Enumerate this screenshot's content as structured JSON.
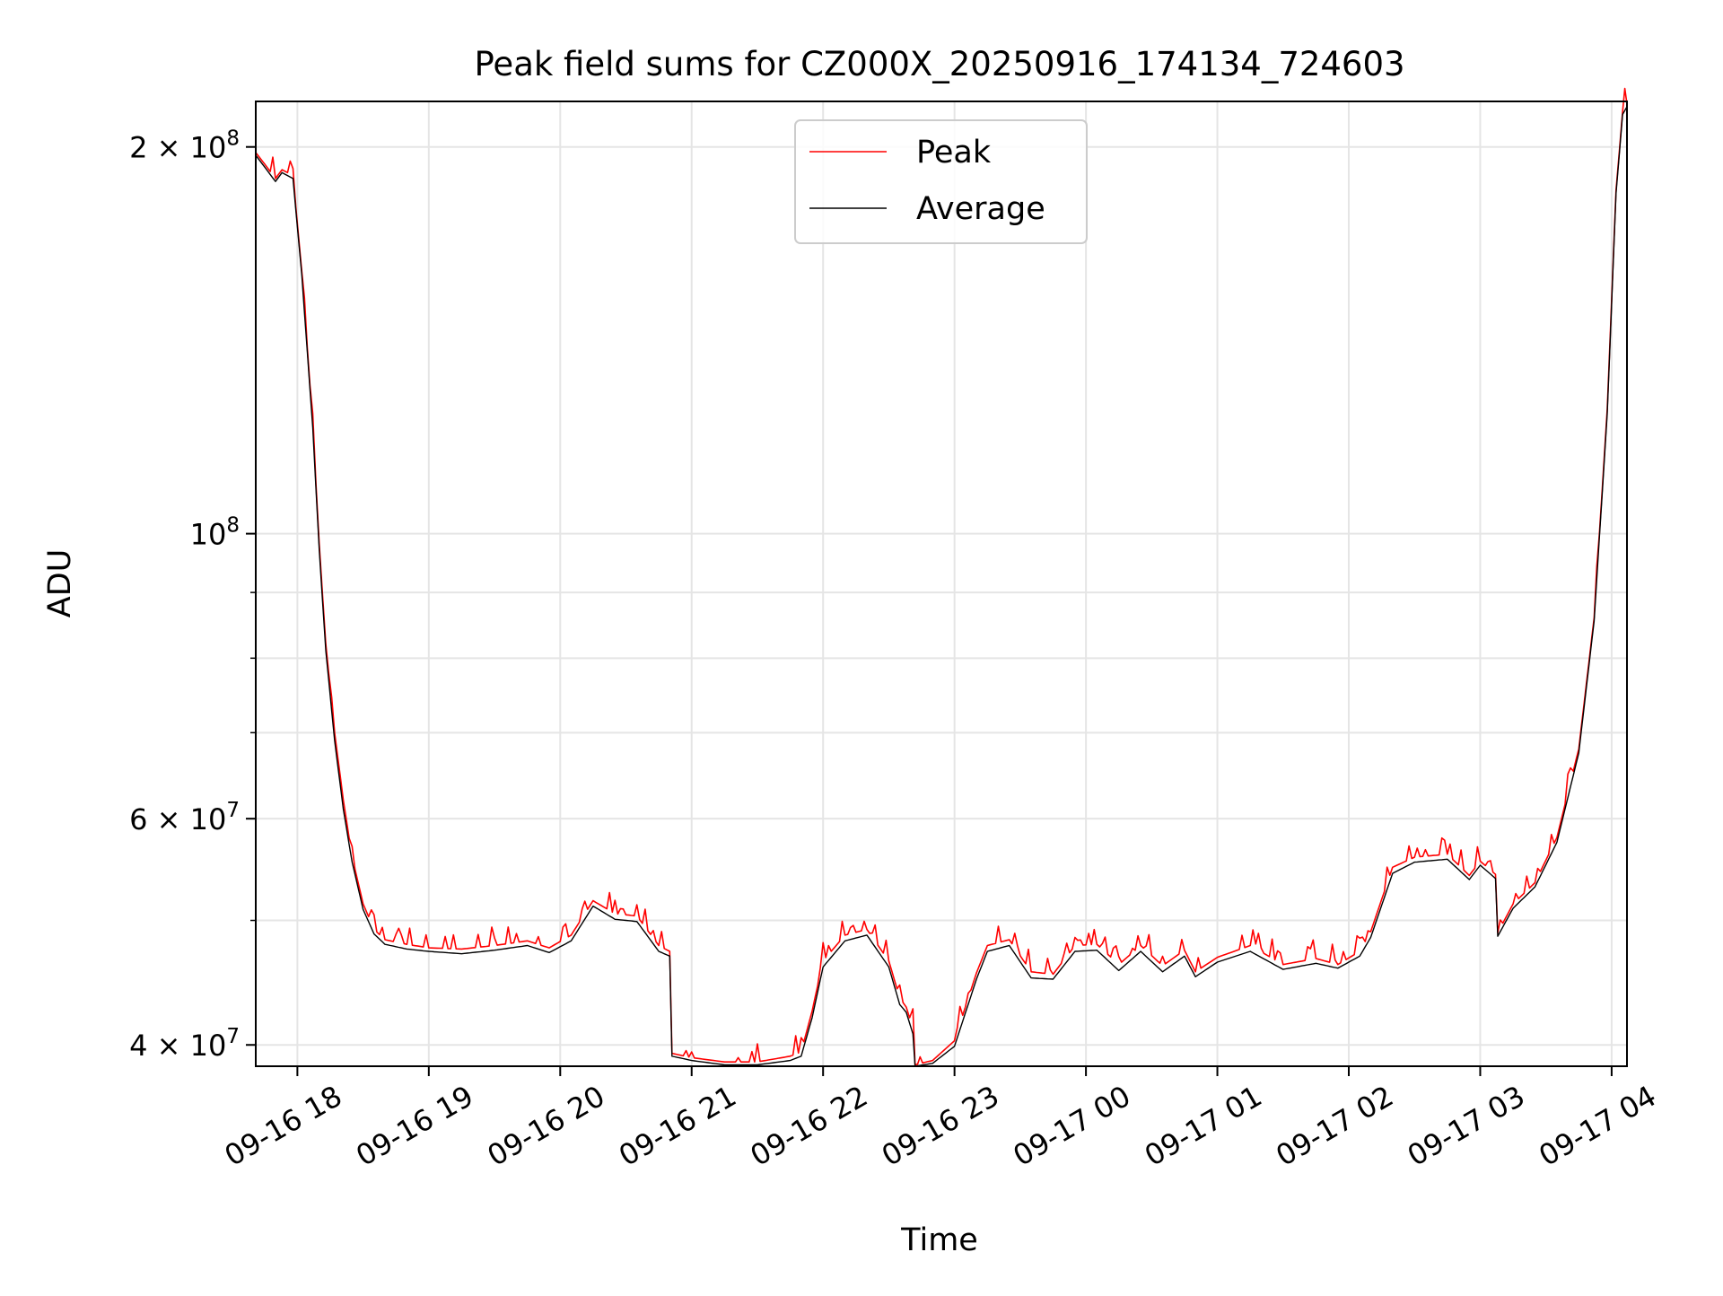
{
  "chart_data": {
    "type": "line",
    "title": "Peak field sums for CZ000X_20250916_174134_724603",
    "xlabel": "Time",
    "ylabel": "ADU",
    "yscale": "log",
    "ylim": [
      38500000,
      217000000
    ],
    "xlim": [
      "2025-09-16 17:41",
      "2025-09-17 04:07"
    ],
    "grid": true,
    "legend": "upper center",
    "x_ticks": [
      {
        "t": "2025-09-16 18:00",
        "label": "09-16 18"
      },
      {
        "t": "2025-09-16 19:00",
        "label": "09-16 19"
      },
      {
        "t": "2025-09-16 20:00",
        "label": "09-16 20"
      },
      {
        "t": "2025-09-16 21:00",
        "label": "09-16 21"
      },
      {
        "t": "2025-09-16 22:00",
        "label": "09-16 22"
      },
      {
        "t": "2025-09-16 23:00",
        "label": "09-16 23"
      },
      {
        "t": "2025-09-17 00:00",
        "label": "09-17 00"
      },
      {
        "t": "2025-09-17 01:00",
        "label": "09-17 01"
      },
      {
        "t": "2025-09-17 02:00",
        "label": "09-17 02"
      },
      {
        "t": "2025-09-17 03:00",
        "label": "09-17 03"
      },
      {
        "t": "2025-09-17 04:00",
        "label": "09-17 04"
      }
    ],
    "y_ticks": [
      {
        "v": 40000000,
        "base": "4 × 10",
        "exp": "7"
      },
      {
        "v": 60000000,
        "base": "6 × 10",
        "exp": "7"
      },
      {
        "v": 100000000,
        "base": "10",
        "exp": "8"
      },
      {
        "v": 200000000,
        "base": "2 × 10",
        "exp": "8"
      }
    ],
    "y_minor_ticks": [
      50000000,
      70000000,
      80000000,
      90000000
    ],
    "series": [
      {
        "name": "Peak",
        "color": "#ff0000",
        "noise_spikes": true,
        "x": [
          "2025-09-16 17:41",
          "2025-09-16 17:44",
          "2025-09-16 17:50",
          "2025-09-16 17:53",
          "2025-09-16 17:58",
          "2025-09-16 18:02",
          "2025-09-16 18:07",
          "2025-09-16 18:10",
          "2025-09-16 18:13",
          "2025-09-16 18:17",
          "2025-09-16 18:21",
          "2025-09-16 18:25",
          "2025-09-16 18:30",
          "2025-09-16 18:35",
          "2025-09-16 18:40",
          "2025-09-16 18:50",
          "2025-09-16 19:00",
          "2025-09-16 19:15",
          "2025-09-16 19:30",
          "2025-09-16 19:45",
          "2025-09-16 19:55",
          "2025-09-16 20:05",
          "2025-09-16 20:15",
          "2025-09-16 20:25",
          "2025-09-16 20:35",
          "2025-09-16 20:45",
          "2025-09-16 20:50",
          "2025-09-16 20:51",
          "2025-09-16 21:00",
          "2025-09-16 21:15",
          "2025-09-16 21:30",
          "2025-09-16 21:45",
          "2025-09-16 21:50",
          "2025-09-16 21:55",
          "2025-09-16 22:00",
          "2025-09-16 22:10",
          "2025-09-16 22:20",
          "2025-09-16 22:30",
          "2025-09-16 22:35",
          "2025-09-16 22:38",
          "2025-09-16 22:41",
          "2025-09-16 22:42",
          "2025-09-16 22:50",
          "2025-09-16 23:00",
          "2025-09-16 23:10",
          "2025-09-16 23:15",
          "2025-09-16 23:25",
          "2025-09-16 23:35",
          "2025-09-16 23:45",
          "2025-09-16 23:55",
          "2025-09-17 00:05",
          "2025-09-17 00:15",
          "2025-09-17 00:25",
          "2025-09-17 00:35",
          "2025-09-17 00:45",
          "2025-09-17 00:50",
          "2025-09-17 01:00",
          "2025-09-17 01:15",
          "2025-09-17 01:30",
          "2025-09-17 01:45",
          "2025-09-17 01:55",
          "2025-09-17 02:05",
          "2025-09-17 02:10",
          "2025-09-17 02:20",
          "2025-09-17 02:30",
          "2025-09-17 02:45",
          "2025-09-17 02:55",
          "2025-09-17 03:00",
          "2025-09-17 03:07",
          "2025-09-17 03:08",
          "2025-09-17 03:15",
          "2025-09-17 03:25",
          "2025-09-17 03:35",
          "2025-09-17 03:45",
          "2025-09-17 03:52",
          "2025-09-17 03:58",
          "2025-09-17 04:02",
          "2025-09-17 04:05",
          "2025-09-17 04:07"
        ],
        "y": [
          198000000,
          195000000,
          189000000,
          192000000,
          190000000,
          160000000,
          122000000,
          98000000,
          82000000,
          70000000,
          62000000,
          56000000,
          51500000,
          49200000,
          48300000,
          47900000,
          47600000,
          47500000,
          47800000,
          48200000,
          47600000,
          48700000,
          51800000,
          50600000,
          50400000,
          47800000,
          47300000,
          39400000,
          39100000,
          38800000,
          38800000,
          39200000,
          39500000,
          42500000,
          46500000,
          48700000,
          49200000,
          46500000,
          43500000,
          42800000,
          41200000,
          38600000,
          38900000,
          40300000,
          45500000,
          47800000,
          48300000,
          45600000,
          45400000,
          47800000,
          47900000,
          46200000,
          47800000,
          46100000,
          47400000,
          45600000,
          46800000,
          47800000,
          46200000,
          46700000,
          46200000,
          47300000,
          49000000,
          55000000,
          56000000,
          56300000,
          54200000,
          55600000,
          54300000,
          48900000,
          51500000,
          53500000,
          58000000,
          68000000,
          86000000,
          125000000,
          185000000,
          213000000,
          216000000
        ]
      },
      {
        "name": "Average",
        "color": "#000000",
        "noise_spikes": false,
        "x": [
          "2025-09-16 17:41",
          "2025-09-16 17:44",
          "2025-09-16 17:50",
          "2025-09-16 17:53",
          "2025-09-16 17:58",
          "2025-09-16 18:02",
          "2025-09-16 18:07",
          "2025-09-16 18:10",
          "2025-09-16 18:13",
          "2025-09-16 18:17",
          "2025-09-16 18:21",
          "2025-09-16 18:25",
          "2025-09-16 18:30",
          "2025-09-16 18:35",
          "2025-09-16 18:40",
          "2025-09-16 18:50",
          "2025-09-16 19:00",
          "2025-09-16 19:15",
          "2025-09-16 19:30",
          "2025-09-16 19:45",
          "2025-09-16 19:55",
          "2025-09-16 20:05",
          "2025-09-16 20:15",
          "2025-09-16 20:25",
          "2025-09-16 20:35",
          "2025-09-16 20:45",
          "2025-09-16 20:50",
          "2025-09-16 20:51",
          "2025-09-16 21:00",
          "2025-09-16 21:15",
          "2025-09-16 21:30",
          "2025-09-16 21:45",
          "2025-09-16 21:50",
          "2025-09-16 21:55",
          "2025-09-16 22:00",
          "2025-09-16 22:10",
          "2025-09-16 22:20",
          "2025-09-16 22:30",
          "2025-09-16 22:35",
          "2025-09-16 22:38",
          "2025-09-16 22:41",
          "2025-09-16 22:42",
          "2025-09-16 22:50",
          "2025-09-16 23:00",
          "2025-09-16 23:10",
          "2025-09-16 23:15",
          "2025-09-16 23:25",
          "2025-09-16 23:35",
          "2025-09-16 23:45",
          "2025-09-16 23:55",
          "2025-09-17 00:05",
          "2025-09-17 00:15",
          "2025-09-17 00:25",
          "2025-09-17 00:35",
          "2025-09-17 00:45",
          "2025-09-17 00:50",
          "2025-09-17 01:00",
          "2025-09-17 01:15",
          "2025-09-17 01:30",
          "2025-09-17 01:45",
          "2025-09-17 01:55",
          "2025-09-17 02:05",
          "2025-09-17 02:10",
          "2025-09-17 02:20",
          "2025-09-17 02:30",
          "2025-09-17 02:45",
          "2025-09-17 02:55",
          "2025-09-17 03:00",
          "2025-09-17 03:07",
          "2025-09-17 03:08",
          "2025-09-17 03:15",
          "2025-09-17 03:25",
          "2025-09-17 03:35",
          "2025-09-17 03:45",
          "2025-09-17 03:52",
          "2025-09-17 03:58",
          "2025-09-17 04:02",
          "2025-09-17 04:05",
          "2025-09-17 04:07"
        ],
        "y": [
          197000000,
          194000000,
          188000000,
          191000000,
          189000000,
          159000000,
          121000000,
          97000000,
          81000000,
          69000000,
          61000000,
          55500000,
          51000000,
          48800000,
          47900000,
          47500000,
          47300000,
          47100000,
          47400000,
          47800000,
          47200000,
          48200000,
          51300000,
          50100000,
          49900000,
          47300000,
          46900000,
          39200000,
          38900000,
          38600000,
          38600000,
          38900000,
          39200000,
          42000000,
          46000000,
          48200000,
          48700000,
          46000000,
          43000000,
          42400000,
          40800000,
          38500000,
          38700000,
          39900000,
          45000000,
          47300000,
          47800000,
          45100000,
          45000000,
          47300000,
          47400000,
          45700000,
          47300000,
          45600000,
          46900000,
          45200000,
          46400000,
          47300000,
          45800000,
          46300000,
          45900000,
          46900000,
          48500000,
          54400000,
          55500000,
          55800000,
          53800000,
          55200000,
          53900000,
          48600000,
          51100000,
          53100000,
          57500000,
          67500000,
          85500000,
          124000000,
          184000000,
          212000000,
          215000000
        ]
      }
    ]
  }
}
